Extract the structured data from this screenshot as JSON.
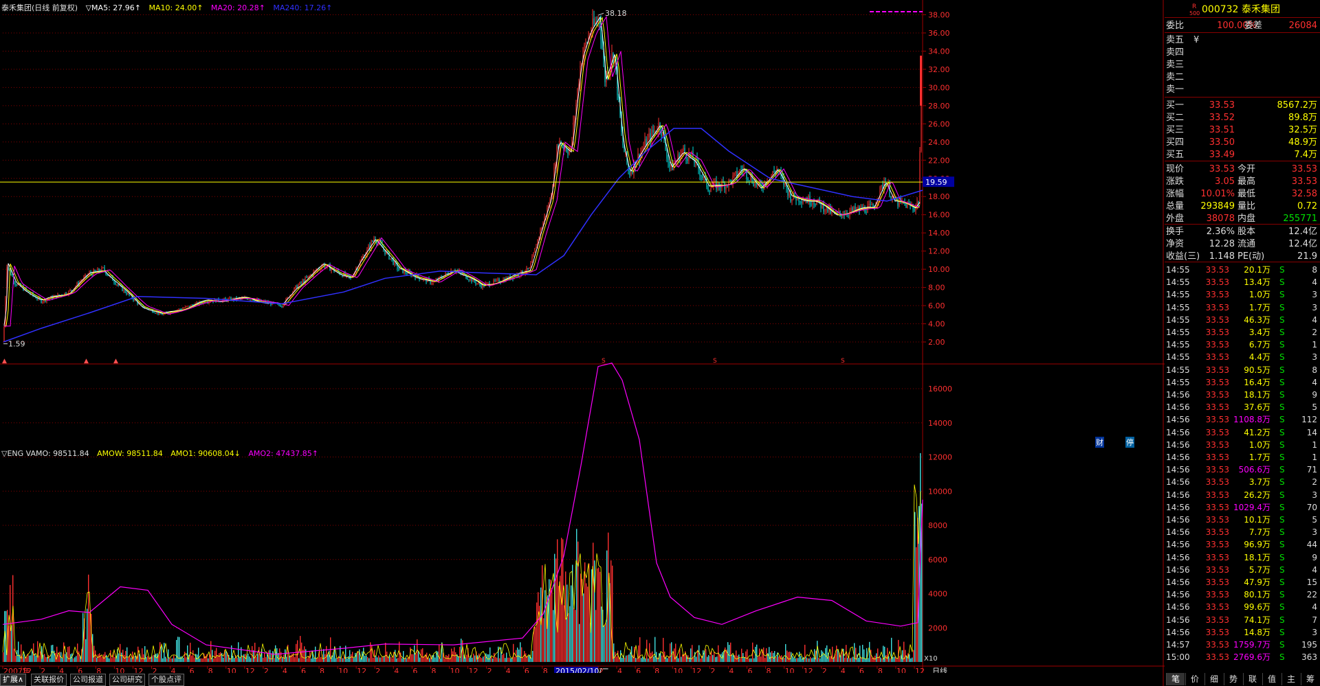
{
  "header": {
    "title": "泰禾集团(日线 前复权)",
    "ma5": "▽MA5: 27.96↑",
    "ma10": "MA10: 24.00↑",
    "ma20": "MA20: 20.28↑",
    "ma240": "MA240: 17.26↑"
  },
  "price_axis": {
    "labels": [
      "38.00",
      "36.00",
      "34.00",
      "32.00",
      "30.00",
      "28.00",
      "26.00",
      "24.00",
      "22.00",
      "20.00",
      "18.00",
      "16.00",
      "14.00",
      "12.00",
      "10.00",
      "8.00",
      "6.00",
      "4.00",
      "2.00"
    ],
    "marker": "19.59",
    "high_label": "38.18",
    "low_label": "1.59"
  },
  "volume_header": {
    "eng": "▽ENG VAMO: 98511.84",
    "amow": "AMOW: 98511.84",
    "amo1": "AMO1: 90608.04↓",
    "amo2": "AMO2: 47437.85↑"
  },
  "volume_axis": {
    "labels": [
      "16000",
      "14000",
      "12000",
      "10000",
      "8000",
      "6000",
      "4000",
      "2000"
    ],
    "unit": "X10"
  },
  "markers": {
    "cai": "财",
    "ting": "停"
  },
  "date_axis": {
    "labels": [
      "2007年",
      "12",
      "2",
      "4",
      "6",
      "8",
      "10",
      "12",
      "2",
      "4",
      "6",
      "8",
      "10",
      "12",
      "2",
      "4",
      "6",
      "8",
      "10",
      "12",
      "2",
      "4",
      "6",
      "8",
      "10",
      "12",
      "2",
      "4",
      "6",
      "8",
      "10",
      "12",
      "2",
      "4",
      "6",
      "8",
      "10",
      "12",
      "2",
      "4",
      "6",
      "8",
      "10",
      "12",
      "2",
      "4",
      "6",
      "8",
      "10",
      "12"
    ],
    "highlight": "2015/02/10/二",
    "right": "日线"
  },
  "tabs": [
    "扩展∧",
    "关联报价",
    "公司报道",
    "公司研究",
    "个股点评"
  ],
  "quote": {
    "code": "000732",
    "name": "泰禾集团",
    "r_mark": "R",
    "r_sub": "500",
    "weibi_label": "委比",
    "weibi": "100.00%",
    "weicha_label": "委差",
    "weicha": "26084",
    "sell": [
      {
        "label": "卖五",
        "price": "¥",
        "vol": ""
      },
      {
        "label": "卖四",
        "price": "",
        "vol": ""
      },
      {
        "label": "卖三",
        "price": "",
        "vol": ""
      },
      {
        "label": "卖二",
        "price": "",
        "vol": ""
      },
      {
        "label": "卖一",
        "price": "",
        "vol": ""
      }
    ],
    "buy": [
      {
        "label": "买一",
        "price": "33.53",
        "vol": "8567.2万"
      },
      {
        "label": "买二",
        "price": "33.52",
        "vol": "89.8万"
      },
      {
        "label": "买三",
        "price": "33.51",
        "vol": "32.5万"
      },
      {
        "label": "买四",
        "price": "33.50",
        "vol": "48.9万"
      },
      {
        "label": "买五",
        "price": "33.49",
        "vol": "7.4万"
      }
    ],
    "stats": [
      {
        "l1": "现价",
        "v1": "33.53",
        "l2": "今开",
        "v2": "33.53",
        "c1": "#ff3030",
        "c2": "#ff3030"
      },
      {
        "l1": "涨跌",
        "v1": "3.05",
        "l2": "最高",
        "v2": "33.53",
        "c1": "#ff3030",
        "c2": "#ff3030"
      },
      {
        "l1": "涨幅",
        "v1": "10.01%",
        "l2": "最低",
        "v2": "32.58",
        "c1": "#ff3030",
        "c2": "#ff3030"
      },
      {
        "l1": "总量",
        "v1": "293849",
        "l2": "量比",
        "v2": "0.72",
        "c1": "#ffff00",
        "c2": "#ffff00"
      },
      {
        "l1": "外盘",
        "v1": "38078",
        "l2": "内盘",
        "v2": "255771",
        "c1": "#ff3030",
        "c2": "#00e000"
      }
    ],
    "stats2": [
      {
        "l1": "换手",
        "v1": "2.36%",
        "l2": "股本",
        "v2": "12.4亿"
      },
      {
        "l1": "净资",
        "v1": "12.28",
        "l2": "流通",
        "v2": "12.4亿"
      },
      {
        "l1": "收益(三)",
        "v1": "1.148",
        "l2": "PE(动)",
        "v2": "21.9"
      }
    ]
  },
  "ticks": [
    {
      "t": "14:55",
      "p": "33.53",
      "v": "20.1万",
      "s": "S",
      "n": "8",
      "mag": false
    },
    {
      "t": "14:55",
      "p": "33.53",
      "v": "13.4万",
      "s": "S",
      "n": "4",
      "mag": false
    },
    {
      "t": "14:55",
      "p": "33.53",
      "v": "1.0万",
      "s": "S",
      "n": "3",
      "mag": false
    },
    {
      "t": "14:55",
      "p": "33.53",
      "v": "1.7万",
      "s": "S",
      "n": "3",
      "mag": false
    },
    {
      "t": "14:55",
      "p": "33.53",
      "v": "46.3万",
      "s": "S",
      "n": "4",
      "mag": false
    },
    {
      "t": "14:55",
      "p": "33.53",
      "v": "3.4万",
      "s": "S",
      "n": "2",
      "mag": false
    },
    {
      "t": "14:55",
      "p": "33.53",
      "v": "6.7万",
      "s": "S",
      "n": "1",
      "mag": false
    },
    {
      "t": "14:55",
      "p": "33.53",
      "v": "4.4万",
      "s": "S",
      "n": "3",
      "mag": false
    },
    {
      "t": "14:55",
      "p": "33.53",
      "v": "90.5万",
      "s": "S",
      "n": "8",
      "mag": false
    },
    {
      "t": "14:55",
      "p": "33.53",
      "v": "16.4万",
      "s": "S",
      "n": "4",
      "mag": false
    },
    {
      "t": "14:56",
      "p": "33.53",
      "v": "18.1万",
      "s": "S",
      "n": "9",
      "mag": false
    },
    {
      "t": "14:56",
      "p": "33.53",
      "v": "37.6万",
      "s": "S",
      "n": "5",
      "mag": false
    },
    {
      "t": "14:56",
      "p": "33.53",
      "v": "1108.8万",
      "s": "S",
      "n": "112",
      "mag": true
    },
    {
      "t": "14:56",
      "p": "33.53",
      "v": "41.2万",
      "s": "S",
      "n": "14",
      "mag": false
    },
    {
      "t": "14:56",
      "p": "33.53",
      "v": "1.0万",
      "s": "S",
      "n": "1",
      "mag": false
    },
    {
      "t": "14:56",
      "p": "33.53",
      "v": "1.7万",
      "s": "S",
      "n": "1",
      "mag": false
    },
    {
      "t": "14:56",
      "p": "33.53",
      "v": "506.6万",
      "s": "S",
      "n": "71",
      "mag": true
    },
    {
      "t": "14:56",
      "p": "33.53",
      "v": "3.7万",
      "s": "S",
      "n": "2",
      "mag": false
    },
    {
      "t": "14:56",
      "p": "33.53",
      "v": "26.2万",
      "s": "S",
      "n": "3",
      "mag": false
    },
    {
      "t": "14:56",
      "p": "33.53",
      "v": "1029.4万",
      "s": "S",
      "n": "70",
      "mag": true
    },
    {
      "t": "14:56",
      "p": "33.53",
      "v": "10.1万",
      "s": "S",
      "n": "5",
      "mag": false
    },
    {
      "t": "14:56",
      "p": "33.53",
      "v": "7.7万",
      "s": "S",
      "n": "3",
      "mag": false
    },
    {
      "t": "14:56",
      "p": "33.53",
      "v": "96.9万",
      "s": "S",
      "n": "44",
      "mag": false
    },
    {
      "t": "14:56",
      "p": "33.53",
      "v": "18.1万",
      "s": "S",
      "n": "9",
      "mag": false
    },
    {
      "t": "14:56",
      "p": "33.53",
      "v": "5.7万",
      "s": "S",
      "n": "4",
      "mag": false
    },
    {
      "t": "14:56",
      "p": "33.53",
      "v": "47.9万",
      "s": "S",
      "n": "15",
      "mag": false
    },
    {
      "t": "14:56",
      "p": "33.53",
      "v": "80.1万",
      "s": "S",
      "n": "22",
      "mag": false
    },
    {
      "t": "14:56",
      "p": "33.53",
      "v": "99.6万",
      "s": "S",
      "n": "4",
      "mag": false
    },
    {
      "t": "14:56",
      "p": "33.53",
      "v": "74.1万",
      "s": "S",
      "n": "7",
      "mag": false
    },
    {
      "t": "14:56",
      "p": "33.53",
      "v": "14.8万",
      "s": "S",
      "n": "3",
      "mag": false
    },
    {
      "t": "14:57",
      "p": "33.53",
      "v": "1759.7万",
      "s": "S",
      "n": "195",
      "mag": true
    },
    {
      "t": "15:00",
      "p": "33.53",
      "v": "2769.6万",
      "s": "S",
      "n": "363",
      "mag": true
    }
  ],
  "bottom_tabs": [
    "笔",
    "价",
    "细",
    "势",
    "联",
    "值",
    "主",
    "筹"
  ],
  "colors": {
    "up": "#ff3030",
    "down": "#00e0e0",
    "ma5": "#ffffff",
    "ma10": "#ffff00",
    "ma20": "#ff00ff",
    "ma240": "#3030ff",
    "grid": "#8a0000"
  }
}
